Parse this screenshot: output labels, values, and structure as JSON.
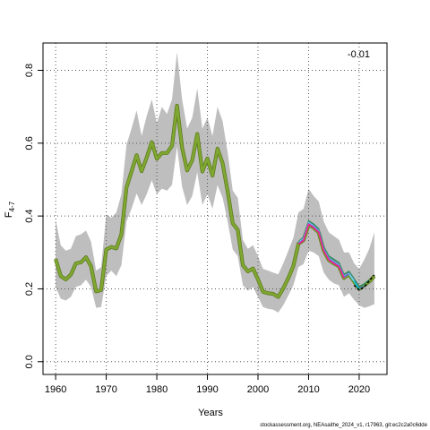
{
  "chart_data": {
    "type": "line",
    "title": "",
    "xlabel": "Years",
    "ylabel": "F",
    "ylabel_subscript": "4-7",
    "xlim": [
      1957.5,
      2025.5
    ],
    "ylim": [
      -0.035,
      0.875
    ],
    "xticks": [
      1960,
      1970,
      1980,
      1990,
      2000,
      2010,
      2020
    ],
    "yticks": [
      0.0,
      0.2,
      0.4,
      0.6,
      0.8
    ],
    "ytick_labels": [
      "0.0",
      "0.2",
      "0.4",
      "0.6",
      "0.8"
    ],
    "grid": true,
    "annotation": "-0.01",
    "caption": "stockassessment.org, NEAsaithe_2024_v1, r17963, git:ec2c2a0c6dde",
    "colors": {
      "band": "#bebebe",
      "main_line": "#7fa832",
      "retro_colors": [
        "#2e8b57",
        "#4682b4",
        "#00ced1",
        "#87ceeb",
        "#6a5acd",
        "#ff1493"
      ],
      "last_peel": "#000000"
    },
    "series": [
      {
        "role": "estimate",
        "x": [
          1960,
          1961,
          1962,
          1963,
          1964,
          1965,
          1966,
          1967,
          1968,
          1969,
          1970,
          1971,
          1972,
          1973,
          1974,
          1975,
          1976,
          1977,
          1978,
          1979,
          1980,
          1981,
          1982,
          1983,
          1984,
          1985,
          1986,
          1987,
          1988,
          1989,
          1990,
          1991,
          1992,
          1993,
          1994,
          1995,
          1996,
          1997,
          1998,
          1999,
          2000,
          2001,
          2002,
          2003,
          2004,
          2005,
          2006,
          2007,
          2008,
          2009,
          2010,
          2011,
          2012,
          2013,
          2014,
          2015,
          2016,
          2017,
          2018,
          2019,
          2020,
          2021,
          2022,
          2023
        ],
        "values": [
          0.282,
          0.235,
          0.226,
          0.239,
          0.27,
          0.273,
          0.287,
          0.262,
          0.193,
          0.197,
          0.308,
          0.315,
          0.311,
          0.35,
          0.478,
          0.522,
          0.567,
          0.523,
          0.561,
          0.603,
          0.557,
          0.573,
          0.573,
          0.593,
          0.703,
          0.587,
          0.525,
          0.553,
          0.625,
          0.522,
          0.558,
          0.511,
          0.585,
          0.545,
          0.468,
          0.38,
          0.362,
          0.265,
          0.248,
          0.256,
          0.226,
          0.192,
          0.188,
          0.186,
          0.178,
          0.201,
          0.23,
          0.263,
          0.324,
          0.334,
          0.376,
          0.368,
          0.355,
          0.305,
          0.279,
          0.27,
          0.262,
          0.23,
          0.24,
          0.22,
          0.2,
          0.21,
          0.22,
          0.235
        ]
      },
      {
        "role": "band_upper",
        "x": [
          1960,
          1961,
          1962,
          1963,
          1964,
          1965,
          1966,
          1967,
          1968,
          1969,
          1970,
          1971,
          1972,
          1973,
          1974,
          1975,
          1976,
          1977,
          1978,
          1979,
          1980,
          1981,
          1982,
          1983,
          1984,
          1985,
          1986,
          1987,
          1988,
          1989,
          1990,
          1991,
          1992,
          1993,
          1994,
          1995,
          1996,
          1997,
          1998,
          1999,
          2000,
          2001,
          2002,
          2003,
          2004,
          2005,
          2006,
          2007,
          2008,
          2009,
          2010,
          2011,
          2012,
          2013,
          2014,
          2015,
          2016,
          2017,
          2018,
          2019,
          2020,
          2021,
          2022,
          2023
        ],
        "values": [
          0.39,
          0.32,
          0.305,
          0.31,
          0.345,
          0.35,
          0.36,
          0.33,
          0.25,
          0.26,
          0.405,
          0.395,
          0.41,
          0.46,
          0.595,
          0.64,
          0.69,
          0.62,
          0.675,
          0.72,
          0.655,
          0.7,
          0.68,
          0.72,
          0.85,
          0.72,
          0.64,
          0.67,
          0.75,
          0.64,
          0.67,
          0.62,
          0.7,
          0.66,
          0.575,
          0.47,
          0.45,
          0.335,
          0.31,
          0.32,
          0.29,
          0.255,
          0.25,
          0.245,
          0.24,
          0.27,
          0.305,
          0.34,
          0.41,
          0.42,
          0.475,
          0.455,
          0.44,
          0.385,
          0.355,
          0.345,
          0.335,
          0.3,
          0.3,
          0.27,
          0.255,
          0.28,
          0.31,
          0.355
        ]
      },
      {
        "role": "band_lower",
        "x": [
          1960,
          1961,
          1962,
          1963,
          1964,
          1965,
          1966,
          1967,
          1968,
          1969,
          1970,
          1971,
          1972,
          1973,
          1974,
          1975,
          1976,
          1977,
          1978,
          1979,
          1980,
          1981,
          1982,
          1983,
          1984,
          1985,
          1986,
          1987,
          1988,
          1989,
          1990,
          1991,
          1992,
          1993,
          1994,
          1995,
          1996,
          1997,
          1998,
          1999,
          2000,
          2001,
          2002,
          2003,
          2004,
          2005,
          2006,
          2007,
          2008,
          2009,
          2010,
          2011,
          2012,
          2013,
          2014,
          2015,
          2016,
          2017,
          2018,
          2019,
          2020,
          2021,
          2022,
          2023
        ],
        "values": [
          0.205,
          0.173,
          0.168,
          0.178,
          0.205,
          0.21,
          0.225,
          0.205,
          0.148,
          0.15,
          0.235,
          0.25,
          0.235,
          0.265,
          0.385,
          0.42,
          0.462,
          0.43,
          0.46,
          0.498,
          0.46,
          0.475,
          0.47,
          0.485,
          0.59,
          0.48,
          0.43,
          0.455,
          0.52,
          0.43,
          0.46,
          0.42,
          0.485,
          0.45,
          0.385,
          0.308,
          0.29,
          0.21,
          0.195,
          0.205,
          0.178,
          0.15,
          0.145,
          0.143,
          0.135,
          0.155,
          0.182,
          0.21,
          0.26,
          0.268,
          0.305,
          0.3,
          0.29,
          0.245,
          0.225,
          0.215,
          0.21,
          0.178,
          0.188,
          0.17,
          0.155,
          0.148,
          0.152,
          0.158
        ]
      },
      {
        "role": "retro_peel",
        "name": "",
        "x": [
          2008,
          2009,
          2010,
          2011,
          2012,
          2013,
          2014,
          2015,
          2016,
          2017,
          2018,
          2019,
          2020,
          2021,
          2022
        ],
        "values": [
          0.33,
          0.342,
          0.387,
          0.378,
          0.365,
          0.316,
          0.29,
          0.281,
          0.272,
          0.24,
          0.248,
          0.228,
          0.207,
          0.213,
          0.225
        ]
      },
      {
        "role": "retro_peel",
        "name": "",
        "x": [
          2008,
          2009,
          2010,
          2011,
          2012,
          2013,
          2014,
          2015,
          2016,
          2017,
          2018,
          2019,
          2020,
          2021
        ],
        "values": [
          0.328,
          0.339,
          0.383,
          0.374,
          0.361,
          0.311,
          0.285,
          0.276,
          0.267,
          0.236,
          0.244,
          0.224,
          0.202,
          0.208
        ]
      },
      {
        "role": "retro_peel",
        "name": "",
        "x": [
          2008,
          2009,
          2010,
          2011,
          2012,
          2013,
          2014,
          2015,
          2016,
          2017,
          2018,
          2019,
          2020
        ],
        "values": [
          0.326,
          0.336,
          0.38,
          0.371,
          0.358,
          0.308,
          0.282,
          0.273,
          0.264,
          0.233,
          0.241,
          0.22,
          0.198
        ]
      },
      {
        "role": "retro_peel",
        "name": "",
        "x": [
          2008,
          2009,
          2010,
          2011,
          2012,
          2013,
          2014,
          2015,
          2016,
          2017,
          2018,
          2019
        ],
        "values": [
          0.327,
          0.338,
          0.382,
          0.372,
          0.359,
          0.309,
          0.283,
          0.274,
          0.265,
          0.234,
          0.242,
          0.222
        ]
      },
      {
        "role": "retro_peel",
        "name": "",
        "x": [
          2008,
          2009,
          2010,
          2011,
          2012,
          2013,
          2014,
          2015,
          2016,
          2017,
          2018
        ],
        "values": [
          0.325,
          0.335,
          0.379,
          0.37,
          0.357,
          0.307,
          0.281,
          0.272,
          0.263,
          0.232,
          0.241
        ]
      },
      {
        "role": "retro_peel",
        "name": "",
        "x": [
          2008,
          2009,
          2010,
          2011,
          2012,
          2013,
          2014,
          2015,
          2016,
          2017
        ],
        "values": [
          0.323,
          0.333,
          0.377,
          0.368,
          0.355,
          0.305,
          0.279,
          0.27,
          0.261,
          0.23
        ]
      },
      {
        "role": "last_peel",
        "name": "",
        "x": [
          2019,
          2020,
          2021,
          2022,
          2023
        ],
        "values": [
          0.21,
          0.197,
          0.205,
          0.222,
          0.238
        ]
      }
    ]
  }
}
